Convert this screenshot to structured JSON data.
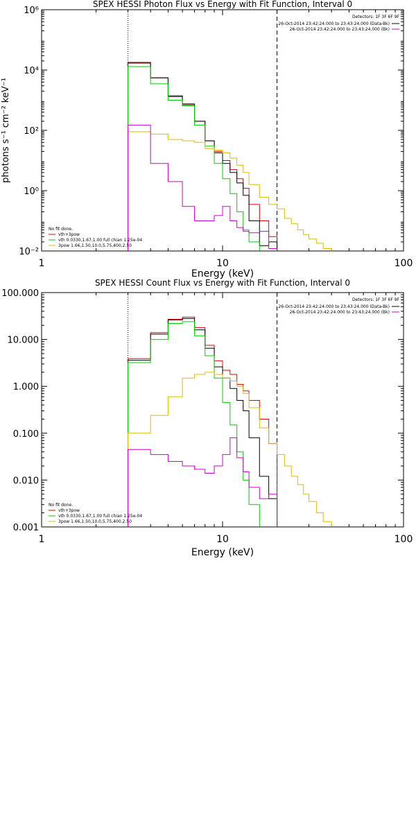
{
  "chart_data": [
    {
      "type": "line",
      "title": "SPEX HESSI Photon Flux vs Energy with Fit Function, Interval 0",
      "xlabel": "Energy (keV)",
      "ylabel": "photons s⁻¹ cm⁻² keV⁻¹",
      "xscale": "log",
      "yscale": "log",
      "xlim": [
        1,
        100
      ],
      "ylim": [
        0.01,
        1000000
      ],
      "x_ticks": [
        {
          "value": 1,
          "label": "1"
        },
        {
          "value": 10,
          "label": "10"
        },
        {
          "value": 100,
          "label": "100"
        }
      ],
      "y_ticks": [
        {
          "value": 0.01,
          "label": "10⁻²"
        },
        {
          "value": 1,
          "label": "10⁰"
        },
        {
          "value": 100,
          "label": "10²"
        },
        {
          "value": 10000,
          "label": "10⁴"
        },
        {
          "value": 1000000,
          "label": "10⁶"
        }
      ],
      "vlines": [
        {
          "x": 3,
          "style": "dotted",
          "color": "#000000"
        },
        {
          "x": 20,
          "style": "dashed",
          "color": "#000000"
        }
      ],
      "legend_topright": {
        "header": "Detectors: 1F 3F 6F 9F",
        "entries": [
          {
            "label": "26-Oct-2014 23:42:24.000 to 23:43:24.000 (Data-Bk)",
            "color": "#000000"
          },
          {
            "label": "26-Oct-2014 23:42:24.000 to 23:43:24.000 (Bk)",
            "color": "#cc00cc"
          }
        ]
      },
      "legend_bottomleft": {
        "header": "No fit done.",
        "entries": [
          {
            "label": "vth+3pow",
            "color": "#dd0000"
          },
          {
            "label": "vth 0.0330,1.67,1.00  full chian 1.25e-04",
            "color": "#00cc00"
          },
          {
            "label": "3pow 1.66,1.50,10.0,5.75,400,2.50",
            "color": "#ddbb00"
          }
        ]
      },
      "series": [
        {
          "color": "#dd0000",
          "edges": [
            3,
            4,
            5,
            6,
            7,
            8,
            9,
            10,
            11,
            12,
            13,
            14,
            16,
            18,
            20
          ],
          "values": [
            18000,
            5500,
            1300,
            700,
            200,
            45,
            20,
            10,
            5,
            2.5,
            1.2,
            0.35,
            0.1,
            0.03
          ],
          "extend_to": 0.01
        },
        {
          "color": "#000000",
          "edges": [
            3,
            4,
            5,
            6,
            7,
            8,
            9,
            10,
            11,
            12,
            13,
            14,
            16,
            18,
            20
          ],
          "values": [
            17000,
            5500,
            1400,
            750,
            200,
            45,
            18,
            8,
            4,
            1.8,
            0.7,
            0.1,
            0.015,
            0.02
          ],
          "extend_to": 0.01
        },
        {
          "color": "#00cc00",
          "edges": [
            3,
            4,
            5,
            6,
            7,
            8,
            9,
            10,
            11,
            12,
            13,
            14,
            16
          ],
          "values": [
            13000,
            3500,
            1000,
            650,
            150,
            30,
            8,
            2.5,
            0.8,
            0.2,
            0.05,
            0.02
          ],
          "extend_to": 0.01
        },
        {
          "color": "#ddbb00",
          "edges": [
            3,
            4,
            5,
            6,
            7,
            8,
            9,
            10,
            11,
            12,
            13,
            14,
            16,
            18,
            20,
            22,
            24,
            26,
            28,
            30,
            33,
            36,
            40
          ],
          "values": [
            90,
            75,
            50,
            45,
            40,
            25,
            22,
            18,
            12,
            7,
            4,
            1.6,
            0.6,
            0.35,
            0.25,
            0.12,
            0.08,
            0.05,
            0.035,
            0.025,
            0.018,
            0.012
          ],
          "extend_to": 0.01
        },
        {
          "color": "#cc00cc",
          "edges": [
            3,
            4,
            5,
            6,
            7,
            8,
            9,
            10,
            11,
            12,
            13,
            14,
            16,
            18,
            20
          ],
          "values": [
            150,
            8,
            2,
            0.3,
            0.1,
            0.1,
            0.15,
            0.3,
            0.1,
            0.06,
            0.045,
            0.04,
            0.045,
            0.012
          ],
          "extend_to": 0.01
        }
      ]
    },
    {
      "type": "line",
      "title": "SPEX HESSI Count Flux vs Energy with Fit Function, Interval 0",
      "xlabel": "Energy (keV)",
      "ylabel": "",
      "xscale": "log",
      "yscale": "log",
      "xlim": [
        1,
        100
      ],
      "ylim": [
        0.001,
        100
      ],
      "x_ticks": [
        {
          "value": 1,
          "label": "1"
        },
        {
          "value": 10,
          "label": "10"
        },
        {
          "value": 100,
          "label": "100"
        }
      ],
      "y_ticks": [
        {
          "value": 0.001,
          "label": "0.001"
        },
        {
          "value": 0.01,
          "label": "0.010"
        },
        {
          "value": 0.1,
          "label": "0.100"
        },
        {
          "value": 1,
          "label": "1.000"
        },
        {
          "value": 10,
          "label": "10.000"
        },
        {
          "value": 100,
          "label": "100.000"
        }
      ],
      "vlines": [
        {
          "x": 3,
          "style": "dotted",
          "color": "#000000"
        },
        {
          "x": 20,
          "style": "dashed",
          "color": "#000000"
        }
      ],
      "legend_topright": {
        "header": "Detectors: 1F 3F 6F 9F",
        "entries": [
          {
            "label": "26-Oct-2014 23:42:24.000 to 23:43:24.000 (Data-Bk)",
            "color": "#000000"
          },
          {
            "label": "26-Oct-2014 23:42:24.000 to 23:43:24.000 (Bk)",
            "color": "#cc00cc"
          }
        ]
      },
      "legend_bottomleft": {
        "header": "No fit done.",
        "entries": [
          {
            "label": "vth+3pow",
            "color": "#dd0000"
          },
          {
            "label": "vth 0.0330,1.67,1.00  full chian 1.25e-04",
            "color": "#00cc00"
          },
          {
            "label": "3pow 1.66,1.50,10.0,5.75,400,2.50",
            "color": "#ddbb00"
          }
        ]
      },
      "series": [
        {
          "color": "#dd0000",
          "edges": [
            3,
            4,
            5,
            6,
            7,
            8,
            9,
            10,
            11,
            12,
            13,
            14,
            16,
            18,
            20
          ],
          "values": [
            3.9,
            14,
            27,
            30,
            18,
            7.5,
            3.5,
            2.2,
            1.8,
            1.1,
            0.8,
            0.5,
            0.2,
            0.06
          ],
          "extend_to": 0.001
        },
        {
          "color": "#000000",
          "edges": [
            3,
            4,
            5,
            6,
            7,
            8,
            9,
            10,
            11,
            12,
            13,
            14,
            16,
            18,
            20
          ],
          "values": [
            3.6,
            13,
            26,
            28,
            16,
            6.5,
            2.6,
            1.5,
            0.9,
            0.5,
            0.3,
            0.08,
            0.012,
            0.004
          ],
          "extend_to": 0.001
        },
        {
          "color": "#00cc00",
          "edges": [
            3,
            4,
            5,
            6,
            7,
            8,
            9,
            10,
            11,
            12,
            13,
            14,
            16
          ],
          "values": [
            3.2,
            10,
            22,
            24,
            12,
            4.5,
            1.5,
            0.45,
            0.15,
            0.04,
            0.01,
            0.003
          ],
          "extend_to": 0.001
        },
        {
          "color": "#ddbb00",
          "edges": [
            3,
            4,
            5,
            6,
            7,
            8,
            9,
            10,
            11,
            12,
            13,
            14,
            16,
            18,
            20,
            22,
            24,
            26,
            28,
            30,
            33,
            36,
            40
          ],
          "values": [
            0.1,
            0.24,
            0.6,
            1.5,
            1.8,
            2.0,
            1.8,
            1.5,
            1.3,
            1.0,
            0.7,
            0.35,
            0.13,
            0.06,
            0.035,
            0.02,
            0.012,
            0.008,
            0.005,
            0.0035,
            0.002,
            0.0013
          ],
          "extend_to": 0.001
        },
        {
          "color": "#cc00cc",
          "edges": [
            3,
            4,
            5,
            6,
            7,
            8,
            9,
            10,
            11,
            12,
            13,
            14,
            16,
            18,
            20
          ],
          "values": [
            0.045,
            0.035,
            0.025,
            0.02,
            0.017,
            0.014,
            0.02,
            0.035,
            0.08,
            0.03,
            0.015,
            0.007,
            0.004,
            0.005
          ],
          "extend_to": 0.001
        }
      ]
    }
  ]
}
